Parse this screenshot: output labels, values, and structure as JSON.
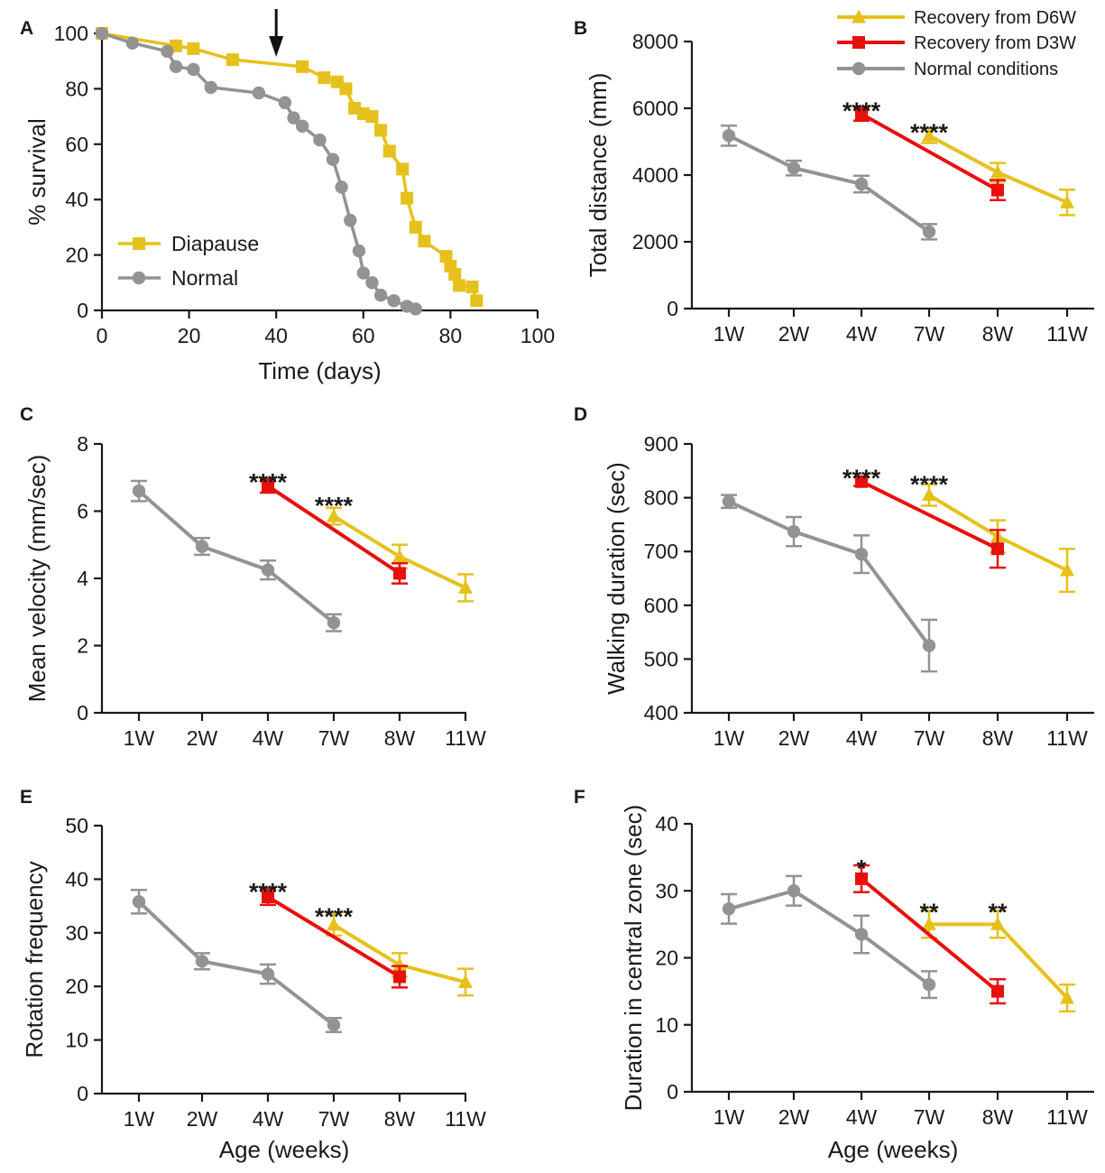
{
  "figure": {
    "background": "#ffffff",
    "axis_color": "#1a1a1a"
  },
  "chart_data": [
    {
      "id": "A",
      "panel_letter": "A",
      "type": "line",
      "title": "",
      "xlabel": "Time (days)",
      "ylabel": "% survival",
      "xlim": [
        0,
        100
      ],
      "ylim": [
        0,
        100
      ],
      "xticks": [
        0,
        20,
        40,
        60,
        80,
        100
      ],
      "yticks": [
        0,
        20,
        40,
        60,
        80,
        100
      ],
      "arrow_at_x": 40,
      "legend": {
        "position": "bottom-left"
      },
      "series": [
        {
          "name": "Diapause",
          "color": "#e6c11b",
          "marker": "square",
          "x": [
            0,
            17,
            21,
            30,
            46,
            51,
            54,
            56,
            58,
            60,
            62,
            64,
            66,
            69,
            70,
            72,
            74,
            79,
            80,
            81,
            82,
            85,
            86
          ],
          "y": [
            100,
            95.5,
            94.5,
            90.5,
            88,
            84,
            82.5,
            80,
            73,
            71,
            70,
            65,
            57.5,
            51,
            40.5,
            30,
            25,
            19.5,
            16,
            13,
            9,
            8.5,
            3.5
          ]
        },
        {
          "name": "Normal",
          "color": "#939393",
          "marker": "circle",
          "x": [
            0,
            7,
            15,
            17,
            21,
            25,
            36,
            42,
            44,
            46,
            50,
            53,
            55,
            57,
            59,
            60,
            62,
            64,
            67,
            70,
            72
          ],
          "y": [
            100,
            96.5,
            93.5,
            88,
            87,
            80.5,
            78.5,
            75,
            69.5,
            66.5,
            61.5,
            54.5,
            44.5,
            32.5,
            21.5,
            13.5,
            10,
            5.5,
            3.5,
            1.5,
            0.5
          ]
        }
      ]
    },
    {
      "id": "B",
      "panel_letter": "B",
      "type": "line",
      "xlabel": "",
      "ylabel": "Total distance (mm)",
      "categories": [
        "1W",
        "2W",
        "4W",
        "7W",
        "8W",
        "11W"
      ],
      "ylim": [
        0,
        8000
      ],
      "yticks": [
        0,
        2000,
        4000,
        6000,
        8000
      ],
      "legend": {
        "position": "top-right"
      },
      "series": [
        {
          "name": "Recovery from D6W",
          "color": "#e6c11b",
          "marker": "triangle",
          "points": [
            [
              3,
              5180,
              220
            ],
            [
              4,
              4080,
              280
            ],
            [
              5,
              3180,
              380
            ]
          ]
        },
        {
          "name": "Recovery from D3W",
          "color": "#e8100e",
          "marker": "square",
          "points": [
            [
              2,
              5830,
              200
            ],
            [
              4,
              3550,
              300
            ]
          ]
        },
        {
          "name": "Normal conditions",
          "color": "#939393",
          "marker": "circle",
          "points": [
            [
              0,
              5180,
              300
            ],
            [
              1,
              4210,
              220
            ],
            [
              2,
              3730,
              250
            ],
            [
              3,
              2300,
              230
            ]
          ]
        }
      ],
      "annotations": [
        {
          "text": "****",
          "cat": 2,
          "y": 6050
        },
        {
          "text": "****",
          "cat": 3,
          "y": 5400
        }
      ]
    },
    {
      "id": "C",
      "panel_letter": "C",
      "type": "line",
      "xlabel": "",
      "ylabel": "Mean velocity (mm/sec)",
      "categories": [
        "1W",
        "2W",
        "4W",
        "7W",
        "8W",
        "11W"
      ],
      "ylim": [
        0,
        8
      ],
      "yticks": [
        0,
        2,
        4,
        6,
        8
      ],
      "series": [
        {
          "name": "Recovery from D6W",
          "color": "#e6c11b",
          "marker": "triangle",
          "points": [
            [
              3,
              5.85,
              0.25
            ],
            [
              4,
              4.65,
              0.35
            ],
            [
              5,
              3.72,
              0.4
            ]
          ]
        },
        {
          "name": "Recovery from D3W",
          "color": "#e8100e",
          "marker": "square",
          "points": [
            [
              2,
              6.75,
              0.2
            ],
            [
              4,
              4.15,
              0.3
            ]
          ]
        },
        {
          "name": "Normal conditions",
          "color": "#939393",
          "marker": "circle",
          "points": [
            [
              0,
              6.6,
              0.3
            ],
            [
              1,
              4.95,
              0.25
            ],
            [
              2,
              4.25,
              0.28
            ],
            [
              3,
              2.68,
              0.25
            ]
          ]
        }
      ],
      "annotations": [
        {
          "text": "****",
          "cat": 2,
          "y": 7.0
        },
        {
          "text": "****",
          "cat": 3,
          "y": 6.3
        }
      ]
    },
    {
      "id": "D",
      "panel_letter": "D",
      "type": "line",
      "xlabel": "",
      "ylabel": "Walking duration (sec)",
      "categories": [
        "1W",
        "2W",
        "4W",
        "7W",
        "8W",
        "11W"
      ],
      "ylim": [
        400,
        900
      ],
      "yticks": [
        400,
        500,
        600,
        700,
        800,
        900
      ],
      "series": [
        {
          "name": "Recovery from D6W",
          "color": "#e6c11b",
          "marker": "triangle",
          "points": [
            [
              3,
              805,
              20
            ],
            [
              4,
              728,
              30
            ],
            [
              5,
              665,
              40
            ]
          ]
        },
        {
          "name": "Recovery from D3W",
          "color": "#e8100e",
          "marker": "square",
          "points": [
            [
              2,
              830,
              8
            ],
            [
              4,
              705,
              35
            ]
          ]
        },
        {
          "name": "Normal conditions",
          "color": "#939393",
          "marker": "circle",
          "points": [
            [
              0,
              793,
              12
            ],
            [
              1,
              737,
              27
            ],
            [
              2,
              695,
              35
            ],
            [
              3,
              525,
              48
            ]
          ]
        }
      ],
      "annotations": [
        {
          "text": "****",
          "cat": 2,
          "y": 845
        },
        {
          "text": "****",
          "cat": 3,
          "y": 833
        }
      ]
    },
    {
      "id": "E",
      "panel_letter": "E",
      "type": "line",
      "xlabel": "Age (weeks)",
      "ylabel": "Rotation frequency",
      "categories": [
        "1W",
        "2W",
        "4W",
        "7W",
        "8W",
        "11W"
      ],
      "ylim": [
        0,
        50
      ],
      "yticks": [
        0,
        10,
        20,
        30,
        40,
        50
      ],
      "series": [
        {
          "name": "Recovery from D6W",
          "color": "#e6c11b",
          "marker": "triangle",
          "points": [
            [
              3,
              31.5,
              2
            ],
            [
              4,
              24,
              2.2
            ],
            [
              5,
              20.8,
              2.5
            ]
          ]
        },
        {
          "name": "Recovery from D3W",
          "color": "#e8100e",
          "marker": "square",
          "points": [
            [
              2,
              36.7,
              1.5
            ],
            [
              4,
              21.8,
              2
            ]
          ]
        },
        {
          "name": "Normal conditions",
          "color": "#939393",
          "marker": "circle",
          "points": [
            [
              0,
              35.8,
              2.2
            ],
            [
              1,
              24.7,
              1.5
            ],
            [
              2,
              22.3,
              1.8
            ],
            [
              3,
              12.8,
              1.3
            ]
          ]
        }
      ],
      "annotations": [
        {
          "text": "****",
          "cat": 2,
          "y": 38.5
        },
        {
          "text": "****",
          "cat": 3,
          "y": 33.8
        }
      ]
    },
    {
      "id": "F",
      "panel_letter": "F",
      "type": "line",
      "xlabel": "Age (weeks)",
      "ylabel": "Duration in central zone (sec)",
      "categories": [
        "1W",
        "2W",
        "4W",
        "7W",
        "8W",
        "11W"
      ],
      "ylim": [
        0,
        40
      ],
      "yticks": [
        0,
        10,
        20,
        30,
        40
      ],
      "series": [
        {
          "name": "Recovery from D6W",
          "color": "#e6c11b",
          "marker": "triangle",
          "points": [
            [
              3,
              25,
              2
            ],
            [
              4,
              25,
              2
            ],
            [
              5,
              14,
              2
            ]
          ]
        },
        {
          "name": "Recovery from D3W",
          "color": "#e8100e",
          "marker": "square",
          "points": [
            [
              2,
              31.8,
              2
            ],
            [
              4,
              15,
              1.8
            ]
          ]
        },
        {
          "name": "Normal conditions",
          "color": "#939393",
          "marker": "circle",
          "points": [
            [
              0,
              27.3,
              2.2
            ],
            [
              1,
              30,
              2.2
            ],
            [
              2,
              23.5,
              2.8
            ],
            [
              3,
              16,
              2
            ]
          ]
        }
      ],
      "annotations": [
        {
          "text": "*",
          "cat": 2,
          "y": 34
        },
        {
          "text": "**",
          "cat": 3,
          "y": 27.5
        },
        {
          "text": "**",
          "cat": 4,
          "y": 27.5
        }
      ]
    }
  ]
}
